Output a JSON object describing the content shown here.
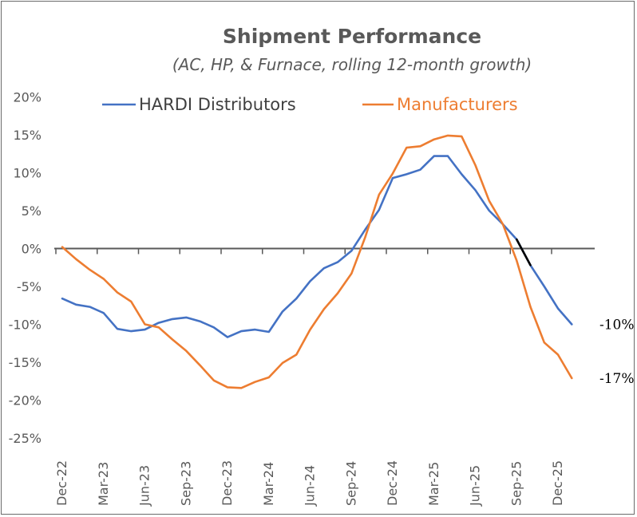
{
  "chart_data": {
    "type": "line",
    "title": "Shipment Performance",
    "subtitle": "(AC, HP, & Furnace, rolling 12-month growth)",
    "xlabel": "",
    "ylabel": "",
    "ylim": [
      -25,
      20
    ],
    "yticks": [
      "20%",
      "15%",
      "10%",
      "5%",
      "0%",
      "-5%",
      "-10%",
      "-15%",
      "-20%",
      "-25%"
    ],
    "ytick_values": [
      20,
      15,
      10,
      5,
      0,
      -5,
      -10,
      -15,
      -20,
      -25
    ],
    "xticks": [
      "Dec-22",
      "Mar-23",
      "Jun-23",
      "Sep-23",
      "Dec-23",
      "Mar-24",
      "Jun-24",
      "Sep-24",
      "Dec-24",
      "Mar-25",
      "Jun-25",
      "Sep-25",
      "Dec-25"
    ],
    "x": [
      "Dec-22",
      "Jan-23",
      "Feb-23",
      "Mar-23",
      "Apr-23",
      "May-23",
      "Jun-23",
      "Jul-23",
      "Aug-23",
      "Sep-23",
      "Oct-23",
      "Nov-23",
      "Dec-23",
      "Jan-24",
      "Feb-24",
      "Mar-24",
      "Apr-24",
      "May-24",
      "Jun-24",
      "Jul-24",
      "Aug-24",
      "Sep-24",
      "Oct-24",
      "Nov-24",
      "Dec-24",
      "Jan-25",
      "Feb-25",
      "Mar-25",
      "Apr-25",
      "May-25",
      "Jun-25",
      "Jul-25",
      "Aug-25",
      "Sep-25",
      "Oct-25",
      "Nov-25",
      "Dec-25",
      "Jan-26"
    ],
    "legend_position": "top",
    "grid": false,
    "series": [
      {
        "name": "HARDI Distributors",
        "color": "#4472C4",
        "values": [
          -6.6,
          -7.4,
          -7.7,
          -8.5,
          -10.6,
          -10.9,
          -10.7,
          -9.8,
          -9.3,
          -9.1,
          -9.6,
          -10.4,
          -11.7,
          -10.9,
          -10.7,
          -11.0,
          -8.3,
          -6.6,
          -4.3,
          -2.6,
          -1.8,
          -0.3,
          2.5,
          5.1,
          9.3,
          9.8,
          10.4,
          12.2,
          12.2,
          9.8,
          7.7,
          5.0,
          3.2,
          1.2,
          -2.2,
          -5.0,
          -7.9,
          -10.0
        ],
        "end_label": "-10%"
      },
      {
        "name": "Manufacturers",
        "color": "#ED7D31",
        "values": [
          0.2,
          -1.4,
          -2.8,
          -4.0,
          -5.8,
          -7.0,
          -10.0,
          -10.4,
          -12.0,
          -13.5,
          -15.4,
          -17.4,
          -18.3,
          -18.4,
          -17.6,
          -17.0,
          -15.1,
          -14.0,
          -10.7,
          -8.0,
          -5.9,
          -3.3,
          1.5,
          7.1,
          9.9,
          13.3,
          13.5,
          14.4,
          14.9,
          14.8,
          11.0,
          6.3,
          3.2,
          -1.6,
          -7.7,
          -12.4,
          -14.0,
          -17.1
        ],
        "end_label": "-17%"
      }
    ],
    "highlight_segment": {
      "from": "Sep-25",
      "to": "Oct-25",
      "color": "#000000"
    }
  }
}
